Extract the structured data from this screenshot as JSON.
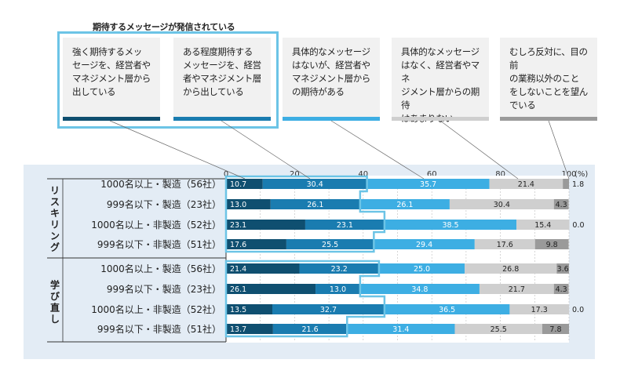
{
  "legend": {
    "title": "期待するメッセージが発信されている",
    "categories": [
      {
        "lines": [
          "強く期待するメッ",
          "セージを、経営者や",
          "マネジメント層から",
          "出している"
        ],
        "color": "#0f4f70"
      },
      {
        "lines": [
          "ある程度期待する",
          "メッセージを、経営",
          "者やマネジメント層",
          "から出している"
        ],
        "color": "#1a7cb0"
      },
      {
        "lines": [
          "具体的なメッセージ",
          "はないが、経営者や",
          "マネジメント層から",
          "の期待がある"
        ],
        "color": "#3daee3"
      },
      {
        "lines": [
          "具体的なメッセージ",
          "はなく、経営者やマネ",
          "ジメント層からの期待",
          "はあまりない"
        ],
        "color": "#cfcfcf"
      },
      {
        "lines": [
          "むしろ反対に、目の前",
          "の業務以外のこと",
          "をしないことを望ん",
          "でいる"
        ],
        "color": "#9a9a9a"
      }
    ]
  },
  "colors": {
    "panel_bg": "#e3ecf5",
    "highlight": "#6cc4e6",
    "series": [
      "#0f4f70",
      "#1a7cb0",
      "#3daee3",
      "#cfcfcf",
      "#9a9a9a"
    ]
  },
  "chart_data": {
    "type": "bar",
    "orientation": "horizontal-stacked-100",
    "xaxis": {
      "ticks": [
        "0",
        "20",
        "40",
        "60",
        "80",
        "100"
      ],
      "unit": "(%)",
      "range": [
        0,
        100
      ]
    },
    "groups": [
      {
        "label": "リスキリング",
        "chars": [
          "リ",
          "ス",
          "キ",
          "リ",
          "ン",
          "グ"
        ]
      },
      {
        "label": "学び直し",
        "chars": [
          "学",
          "び",
          "直",
          "し"
        ]
      }
    ],
    "series_names": [
      "強く期待するメッセージを、経営者やマネジメント層から出している",
      "ある程度期待するメッセージを、経営者やマネジメント層から出している",
      "具体的なメッセージはないが、経営者やマネジメント層からの期待がある",
      "具体的なメッセージはなく、経営者やマネジメント層からの期待はあまりない",
      "むしろ反対に、目の前の業務以外のことをしないことを望んでいる"
    ],
    "rows": [
      {
        "group": 0,
        "label": "1000名以上・製造（56社）",
        "values": [
          10.7,
          30.4,
          35.7,
          21.4,
          1.8
        ],
        "texts": [
          "10.7",
          "30.4",
          "35.7",
          "21.4",
          "1.8"
        ]
      },
      {
        "group": 0,
        "label": "999名以下・製造（23社）",
        "values": [
          13.0,
          26.1,
          26.1,
          30.4,
          4.3
        ],
        "texts": [
          "13.0",
          "26.1",
          "26.1",
          "30.4",
          "4.3"
        ]
      },
      {
        "group": 0,
        "label": "1000名以上・非製造（52社）",
        "values": [
          23.1,
          23.1,
          38.5,
          15.4,
          0.0
        ],
        "texts": [
          "23.1",
          "23.1",
          "38.5",
          "15.4",
          "0.0"
        ]
      },
      {
        "group": 0,
        "label": "999名以下・非製造（51社）",
        "values": [
          17.6,
          25.5,
          29.4,
          17.6,
          9.8
        ],
        "texts": [
          "17.6",
          "25.5",
          "29.4",
          "17.6",
          "9.8"
        ]
      },
      {
        "group": 1,
        "label": "1000名以上・製造（56社）",
        "values": [
          21.4,
          23.2,
          25.0,
          26.8,
          3.6
        ],
        "texts": [
          "21.4",
          "23.2",
          "25.0",
          "26.8",
          "3.6"
        ]
      },
      {
        "group": 1,
        "label": "999名以下・製造（23社）",
        "values": [
          26.1,
          13.0,
          34.8,
          21.7,
          4.3
        ],
        "texts": [
          "26.1",
          "13.0",
          "34.8",
          "21.7",
          "4.3"
        ]
      },
      {
        "group": 1,
        "label": "1000名以上・非製造（52社）",
        "values": [
          13.5,
          32.7,
          36.5,
          17.3,
          0.0
        ],
        "texts": [
          "13.5",
          "32.7",
          "36.5",
          "17.3",
          "0.0"
        ]
      },
      {
        "group": 1,
        "label": "999名以下・非製造（51社）",
        "values": [
          13.7,
          21.6,
          31.4,
          25.5,
          7.8
        ],
        "texts": [
          "13.7",
          "21.6",
          "31.4",
          "25.5",
          "7.8"
        ]
      }
    ]
  }
}
